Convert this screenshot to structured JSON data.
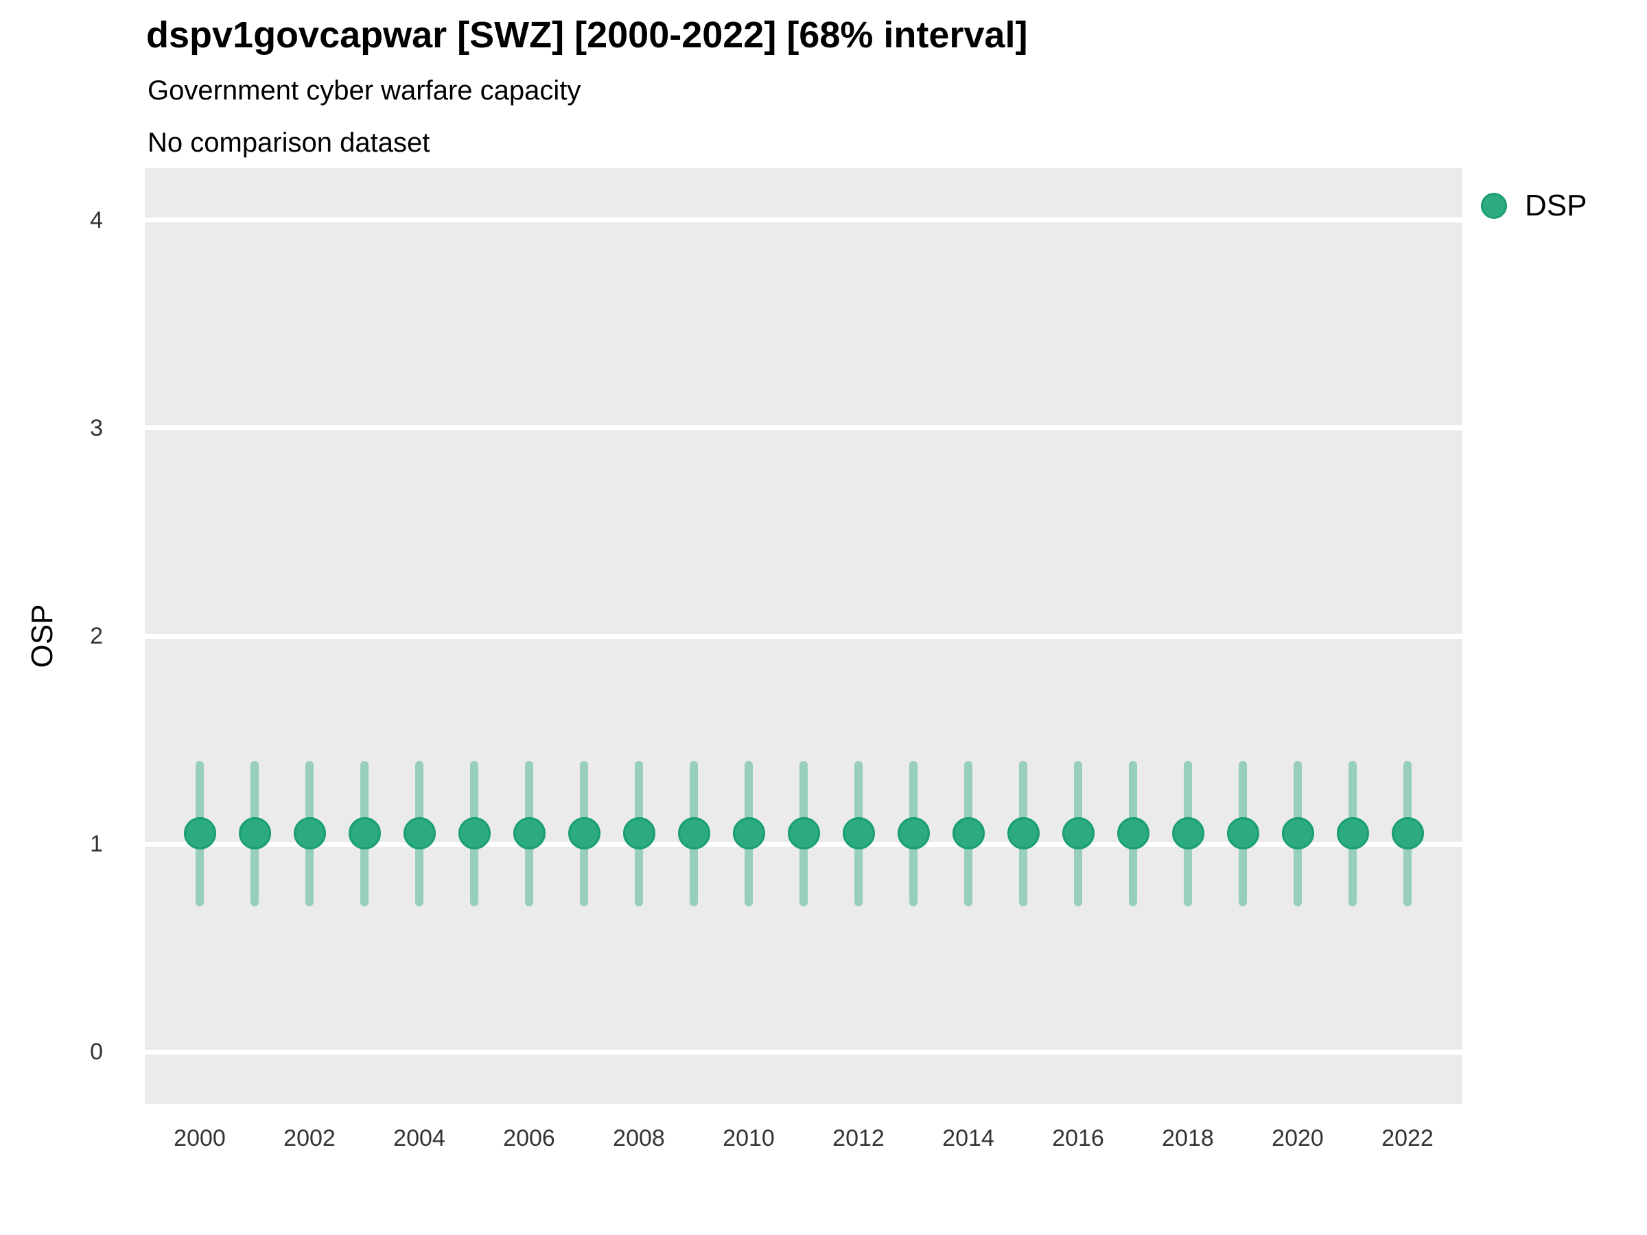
{
  "figure": {
    "title": "dspv1govcapwar [SWZ] [2000-2022] [68% interval]",
    "subtitle": "Government cyber warfare capacity",
    "note": "No comparison dataset"
  },
  "y_axis": {
    "label": "OSP",
    "tick_labels": [
      "4",
      "3",
      "2",
      "1",
      "0"
    ]
  },
  "x_axis": {
    "tick_labels": [
      "2000",
      "2002",
      "2004",
      "2006",
      "2008",
      "2010",
      "2012",
      "2014",
      "2016",
      "2018",
      "2020",
      "2022"
    ]
  },
  "legend": {
    "position": "right",
    "items": [
      {
        "label": "DSP",
        "marker": "circle-icon",
        "color": "#2caa80"
      }
    ]
  },
  "colors": {
    "point_fill": "#2caa80",
    "point_stroke": "#1a9e73",
    "interval_bar": "rgba(44,170,128,0.44)",
    "panel_background": "#ebebeb",
    "gridline": "#ffffff",
    "title_text": "#000000",
    "axis_text": "#333333"
  },
  "chart_data": {
    "type": "scatter",
    "title": "dspv1govcapwar [SWZ] [2000-2022] [68% interval]",
    "subtitle": "Government cyber warfare capacity",
    "note": "No comparison dataset",
    "xlabel": "",
    "ylabel": "OSP",
    "xlim": [
      1999,
      2023
    ],
    "ylim": [
      -0.25,
      4.25
    ],
    "x_ticks": [
      2000,
      2002,
      2004,
      2006,
      2008,
      2010,
      2012,
      2014,
      2016,
      2018,
      2020,
      2022
    ],
    "y_ticks": [
      0,
      1,
      2,
      3,
      4
    ],
    "grid": "horizontal-major-only",
    "legend_position": "right",
    "interval_level": "68%",
    "series": [
      {
        "name": "DSP",
        "x": [
          2000,
          2001,
          2002,
          2003,
          2004,
          2005,
          2006,
          2007,
          2008,
          2009,
          2010,
          2011,
          2012,
          2013,
          2014,
          2015,
          2016,
          2017,
          2018,
          2019,
          2020,
          2021,
          2022
        ],
        "y": [
          1.05,
          1.05,
          1.05,
          1.05,
          1.05,
          1.05,
          1.05,
          1.05,
          1.05,
          1.05,
          1.05,
          1.05,
          1.05,
          1.05,
          1.05,
          1.05,
          1.05,
          1.05,
          1.05,
          1.05,
          1.05,
          1.05,
          1.05
        ],
        "interval_low": [
          0.7,
          0.7,
          0.7,
          0.7,
          0.7,
          0.7,
          0.7,
          0.7,
          0.7,
          0.7,
          0.7,
          0.7,
          0.7,
          0.7,
          0.7,
          0.7,
          0.7,
          0.7,
          0.7,
          0.7,
          0.7,
          0.7,
          0.7
        ],
        "interval_high": [
          1.4,
          1.4,
          1.4,
          1.4,
          1.4,
          1.4,
          1.4,
          1.4,
          1.4,
          1.4,
          1.4,
          1.4,
          1.4,
          1.4,
          1.4,
          1.4,
          1.4,
          1.4,
          1.4,
          1.4,
          1.4,
          1.4,
          1.4
        ]
      }
    ]
  }
}
